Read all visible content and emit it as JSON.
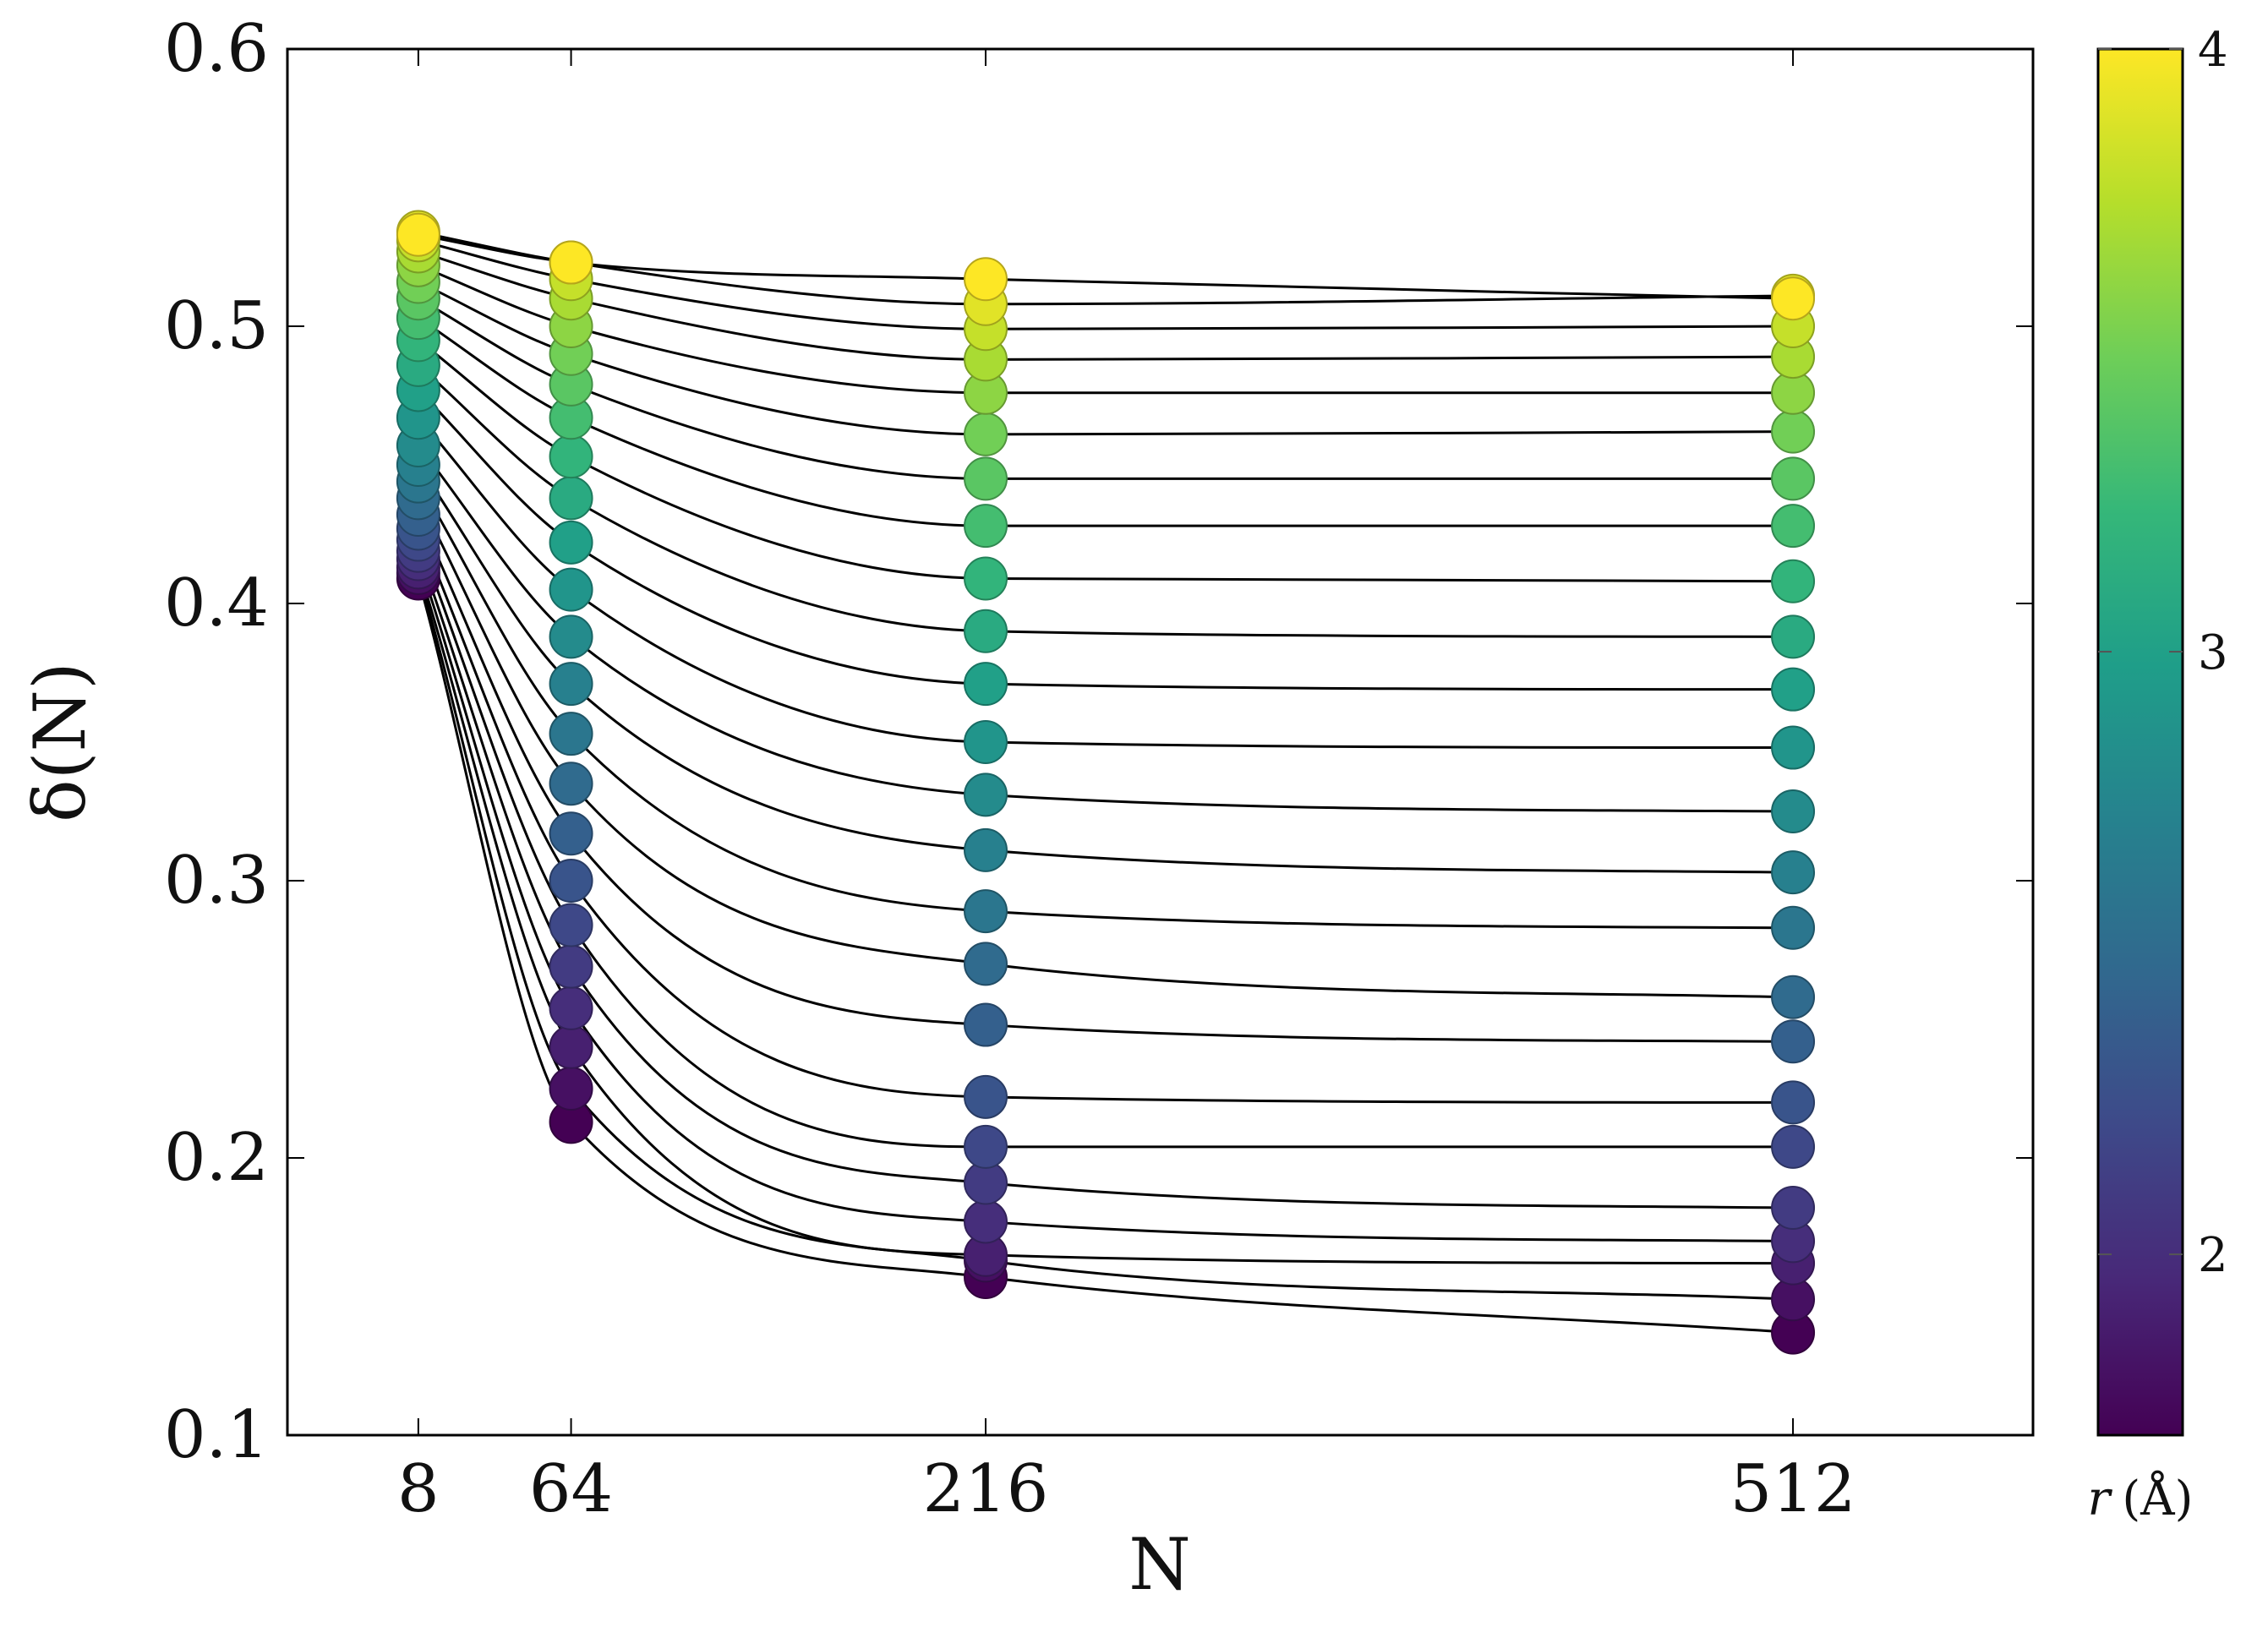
{
  "chart_data": {
    "type": "scatter",
    "xlabel": "N",
    "ylabel": "δ(N)",
    "x": [
      8,
      64,
      216,
      512
    ],
    "x_ticks": [
      "8",
      "64",
      "216",
      "512"
    ],
    "xlim": [
      -40,
      600
    ],
    "ylim": [
      0.1,
      0.6
    ],
    "y_ticks": [
      "0.1",
      "0.2",
      "0.3",
      "0.4",
      "0.5",
      "0.6"
    ],
    "grid": false,
    "marker": "circle",
    "fit_lines": true,
    "colorbar": {
      "label": "r (Å)",
      "label_symbol": "r",
      "label_unit": "(Å)",
      "colormap": "viridis",
      "min": 1.7,
      "max": 4.0,
      "ticks": [
        "2",
        "3",
        "4"
      ],
      "stops": [
        "#440154",
        "#482878",
        "#3e4989",
        "#31688e",
        "#26828e",
        "#1f9e89",
        "#35b779",
        "#6ece58",
        "#b5de2b",
        "#fde725"
      ]
    },
    "series": [
      {
        "r": 1.7,
        "values": [
          0.409,
          0.213,
          0.157,
          0.137
        ]
      },
      {
        "r": 1.8,
        "values": [
          0.411,
          0.225,
          0.163,
          0.149
        ]
      },
      {
        "r": 1.9,
        "values": [
          0.413,
          0.24,
          0.165,
          0.162
        ]
      },
      {
        "r": 2.0,
        "values": [
          0.416,
          0.254,
          0.177,
          0.17
        ]
      },
      {
        "r": 2.1,
        "values": [
          0.419,
          0.269,
          0.191,
          0.182
        ]
      },
      {
        "r": 2.2,
        "values": [
          0.423,
          0.284,
          0.204,
          0.204
        ]
      },
      {
        "r": 2.3,
        "values": [
          0.427,
          0.3,
          0.222,
          0.22
        ]
      },
      {
        "r": 2.4,
        "values": [
          0.432,
          0.317,
          0.248,
          0.242
        ]
      },
      {
        "r": 2.5,
        "values": [
          0.438,
          0.335,
          0.27,
          0.258
        ]
      },
      {
        "r": 2.6,
        "values": [
          0.444,
          0.353,
          0.289,
          0.283
        ]
      },
      {
        "r": 2.7,
        "values": [
          0.45,
          0.371,
          0.311,
          0.303
        ]
      },
      {
        "r": 2.8,
        "values": [
          0.457,
          0.388,
          0.331,
          0.325
        ]
      },
      {
        "r": 2.9,
        "values": [
          0.467,
          0.405,
          0.35,
          0.348
        ]
      },
      {
        "r": 3.0,
        "values": [
          0.477,
          0.422,
          0.371,
          0.369
        ]
      },
      {
        "r": 3.1,
        "values": [
          0.486,
          0.438,
          0.39,
          0.388
        ]
      },
      {
        "r": 3.2,
        "values": [
          0.495,
          0.453,
          0.409,
          0.408
        ]
      },
      {
        "r": 3.3,
        "values": [
          0.503,
          0.467,
          0.428,
          0.428
        ]
      },
      {
        "r": 3.4,
        "values": [
          0.51,
          0.479,
          0.445,
          0.445
        ]
      },
      {
        "r": 3.5,
        "values": [
          0.516,
          0.49,
          0.461,
          0.462
        ]
      },
      {
        "r": 3.6,
        "values": [
          0.522,
          0.5,
          0.476,
          0.476
        ]
      },
      {
        "r": 3.7,
        "values": [
          0.527,
          0.51,
          0.488,
          0.489
        ]
      },
      {
        "r": 3.8,
        "values": [
          0.531,
          0.517,
          0.499,
          0.5
        ]
      },
      {
        "r": 3.9,
        "values": [
          0.534,
          0.523,
          0.508,
          0.511
        ]
      },
      {
        "r": 4.0,
        "values": [
          0.533,
          0.523,
          0.517,
          0.51
        ]
      }
    ]
  }
}
